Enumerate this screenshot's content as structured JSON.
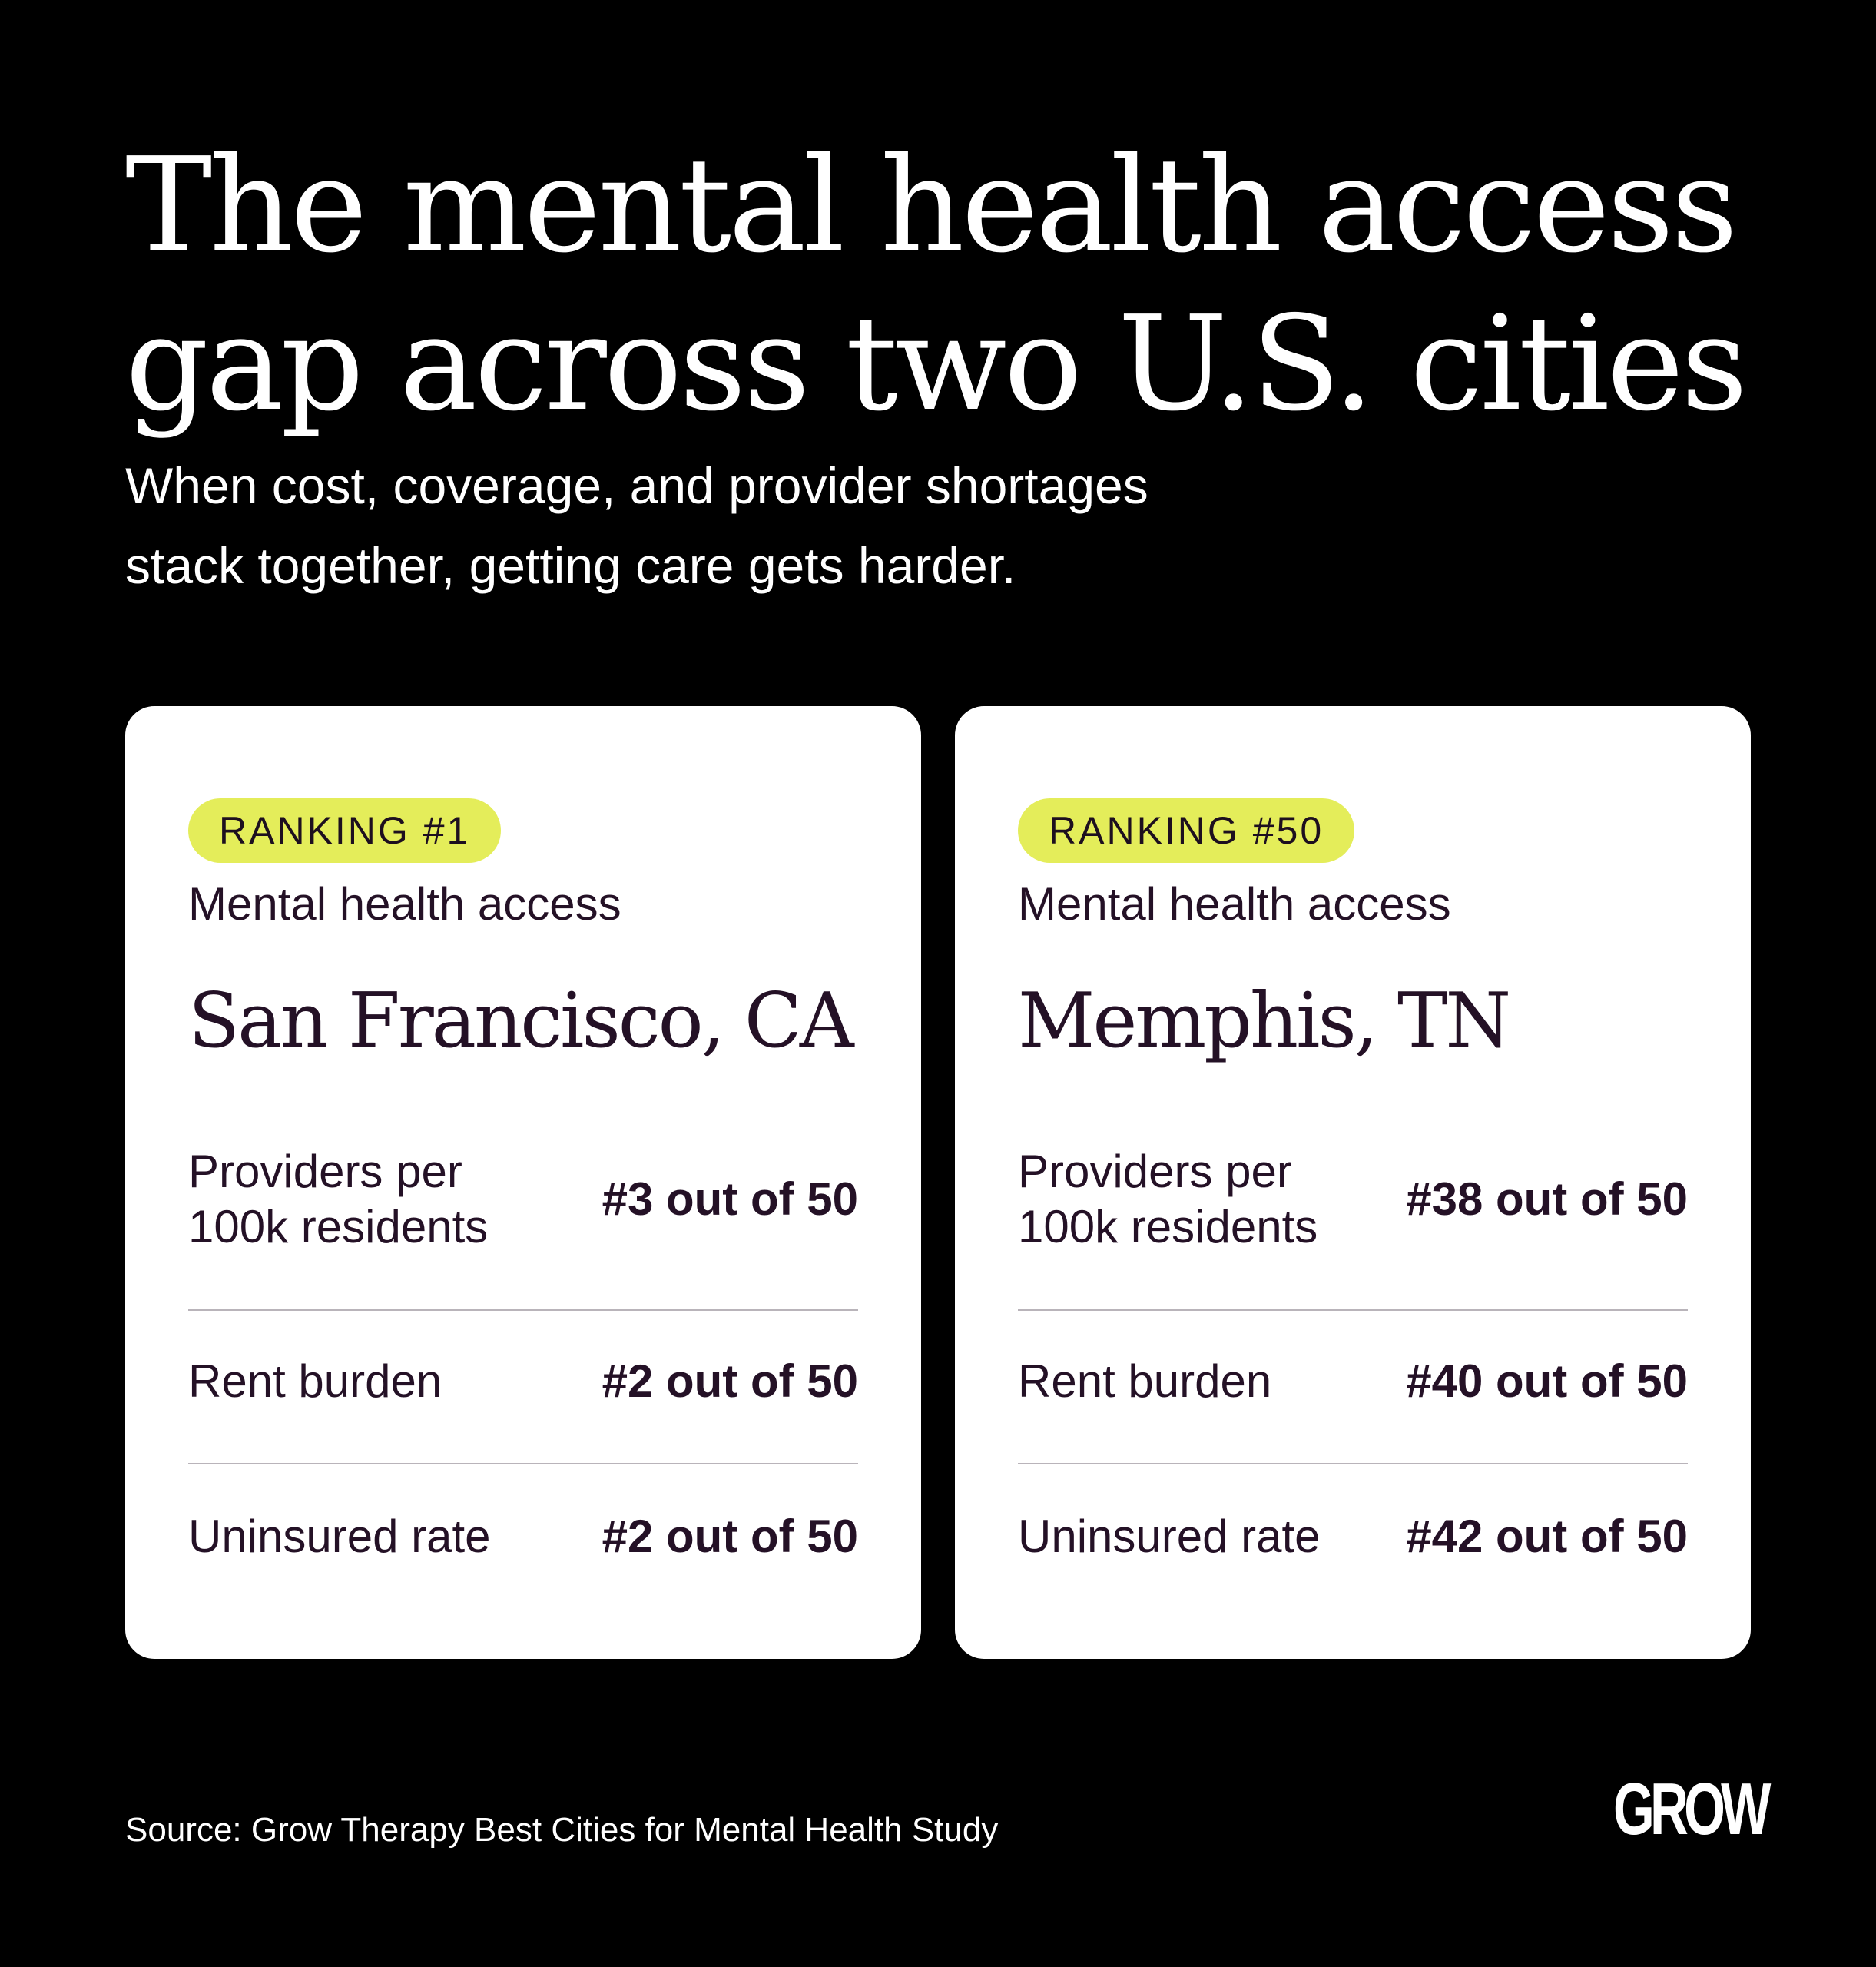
{
  "header": {
    "title_line1": "The mental health access",
    "title_line2": "gap across two U.S. cities",
    "subtitle_line1": "When cost, coverage, and provider shortages",
    "subtitle_line2": "stack together, getting care gets harder."
  },
  "cards": [
    {
      "badge": "RANKING #1",
      "category": "Mental health access",
      "city": "San Francisco, CA",
      "metrics": [
        {
          "label_line1": "Providers per",
          "label_line2": "100k residents",
          "value": "#3 out of 50"
        },
        {
          "label_line1": "Rent burden",
          "value": "#2 out of 50"
        },
        {
          "label_line1": "Uninsured rate",
          "value": "#2 out of 50"
        }
      ]
    },
    {
      "badge": "RANKING #50",
      "category": "Mental health access",
      "city": "Memphis, TN",
      "metrics": [
        {
          "label_line1": "Providers per",
          "label_line2": "100k residents",
          "value": "#38 out of 50"
        },
        {
          "label_line1": "Rent burden",
          "value": "#40 out of 50"
        },
        {
          "label_line1": "Uninsured rate",
          "value": "#42 out of 50"
        }
      ]
    }
  ],
  "footer": {
    "source": "Source: Grow Therapy Best Cities for Mental Health Study",
    "logo_text": "GROW"
  },
  "colors": {
    "background": "#000000",
    "card": "#ffffff",
    "badge": "#e4ed5a",
    "text_dark": "#241126"
  }
}
